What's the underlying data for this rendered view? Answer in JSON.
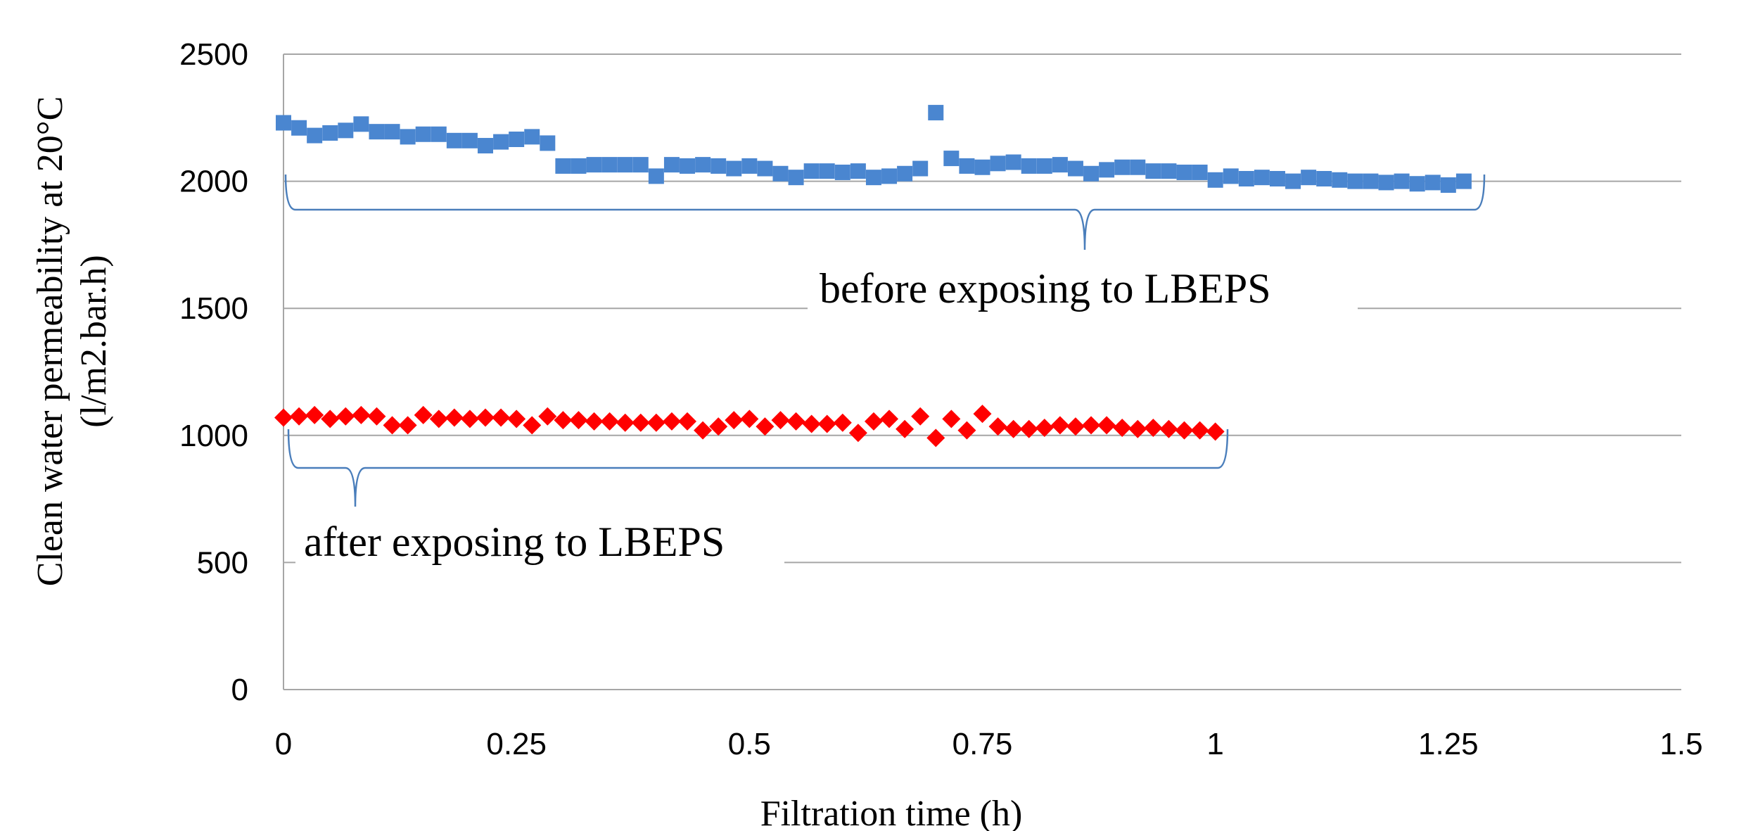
{
  "chart_data": {
    "type": "scatter",
    "title": "",
    "xlabel": "Filtration time (h)",
    "ylabel_line1": "Clean water permeability at  20°C",
    "ylabel_line2": "(l/m2.bar.h)",
    "xlim": [
      0,
      1.5
    ],
    "ylim": [
      0,
      2500
    ],
    "x_ticks": [
      "0",
      "0.25",
      "0.5",
      "0.75",
      "1",
      "1.25",
      "1.5"
    ],
    "y_ticks": [
      "0",
      "500",
      "1000",
      "1500",
      "2000",
      "2500"
    ],
    "grid": "horizontal",
    "legend": "none",
    "annotations": [
      {
        "text": "before exposing to LBEPS",
        "series": "before"
      },
      {
        "text": "after exposing to LBEPS",
        "series": "after"
      }
    ],
    "series": [
      {
        "id": "before",
        "marker": "square",
        "color": "#4a86d0",
        "x": [
          0,
          0.0167,
          0.0333,
          0.05,
          0.0667,
          0.0833,
          0.1,
          0.1167,
          0.1333,
          0.15,
          0.1667,
          0.1833,
          0.2,
          0.2167,
          0.2333,
          0.25,
          0.2667,
          0.2833,
          0.3,
          0.3167,
          0.3333,
          0.35,
          0.3667,
          0.3833,
          0.4,
          0.4167,
          0.4333,
          0.45,
          0.4667,
          0.4833,
          0.5,
          0.5167,
          0.5333,
          0.55,
          0.5667,
          0.5833,
          0.6,
          0.6167,
          0.6333,
          0.65,
          0.6667,
          0.6833,
          0.7,
          0.7167,
          0.7333,
          0.75,
          0.7667,
          0.7833,
          0.8,
          0.8167,
          0.8333,
          0.85,
          0.8667,
          0.8833,
          0.9,
          0.9167,
          0.9333,
          0.95,
          0.9667,
          0.9833,
          1,
          1.0167,
          1.0333,
          1.05,
          1.0667,
          1.0833,
          1.1,
          1.1167,
          1.1333,
          1.15,
          1.1667,
          1.1833,
          1.2,
          1.2167,
          1.2333,
          1.25,
          1.2667
        ],
        "y": [
          2230,
          2210,
          2180,
          2190,
          2200,
          2225,
          2195,
          2195,
          2175,
          2185,
          2185,
          2160,
          2160,
          2140,
          2155,
          2165,
          2175,
          2150,
          2060,
          2060,
          2065,
          2065,
          2065,
          2065,
          2020,
          2065,
          2060,
          2065,
          2060,
          2050,
          2060,
          2050,
          2030,
          2015,
          2040,
          2040,
          2035,
          2040,
          2015,
          2020,
          2030,
          2050,
          2270,
          2090,
          2060,
          2055,
          2070,
          2075,
          2060,
          2060,
          2065,
          2050,
          2030,
          2045,
          2055,
          2055,
          2040,
          2040,
          2035,
          2035,
          2005,
          2020,
          2010,
          2015,
          2010,
          2000,
          2015,
          2010,
          2005,
          2000,
          2000,
          1995,
          2000,
          1990,
          1995,
          1985,
          2000
        ],
        "_note_x_is_exact_not_used": true
      },
      {
        "id": "after",
        "marker": "diamond",
        "color": "#ff0000",
        "x": [
          0,
          0.0167,
          0.0333,
          0.05,
          0.0667,
          0.0833,
          0.1,
          0.1167,
          0.1333,
          0.15,
          0.1667,
          0.1833,
          0.2,
          0.2167,
          0.2333,
          0.25,
          0.2667,
          0.2833,
          0.3,
          0.3167,
          0.3333,
          0.35,
          0.3667,
          0.3833,
          0.4,
          0.4167,
          0.4333,
          0.45,
          0.4667,
          0.4833,
          0.5,
          0.5167,
          0.5333,
          0.55,
          0.5667,
          0.5833,
          0.6,
          0.6167,
          0.6333,
          0.65,
          0.6667,
          0.6833,
          0.7,
          0.7167,
          0.7333,
          0.75,
          0.7667,
          0.7833,
          0.8,
          0.8167,
          0.8333,
          0.85,
          0.8667,
          0.8833,
          0.9,
          0.9167,
          0.9333,
          0.95,
          0.9667,
          0.9833,
          1
        ],
        "y": [
          1070,
          1075,
          1080,
          1065,
          1075,
          1080,
          1075,
          1040,
          1040,
          1080,
          1065,
          1070,
          1065,
          1070,
          1070,
          1065,
          1040,
          1075,
          1060,
          1060,
          1055,
          1055,
          1050,
          1050,
          1050,
          1055,
          1055,
          1020,
          1035,
          1060,
          1065,
          1035,
          1060,
          1055,
          1045,
          1045,
          1050,
          1010,
          1055,
          1065,
          1025,
          1075,
          990,
          1065,
          1020,
          1085,
          1035,
          1025,
          1025,
          1030,
          1040,
          1035,
          1040,
          1040,
          1030,
          1025,
          1030,
          1025,
          1020,
          1020,
          1015
        ]
      }
    ]
  }
}
